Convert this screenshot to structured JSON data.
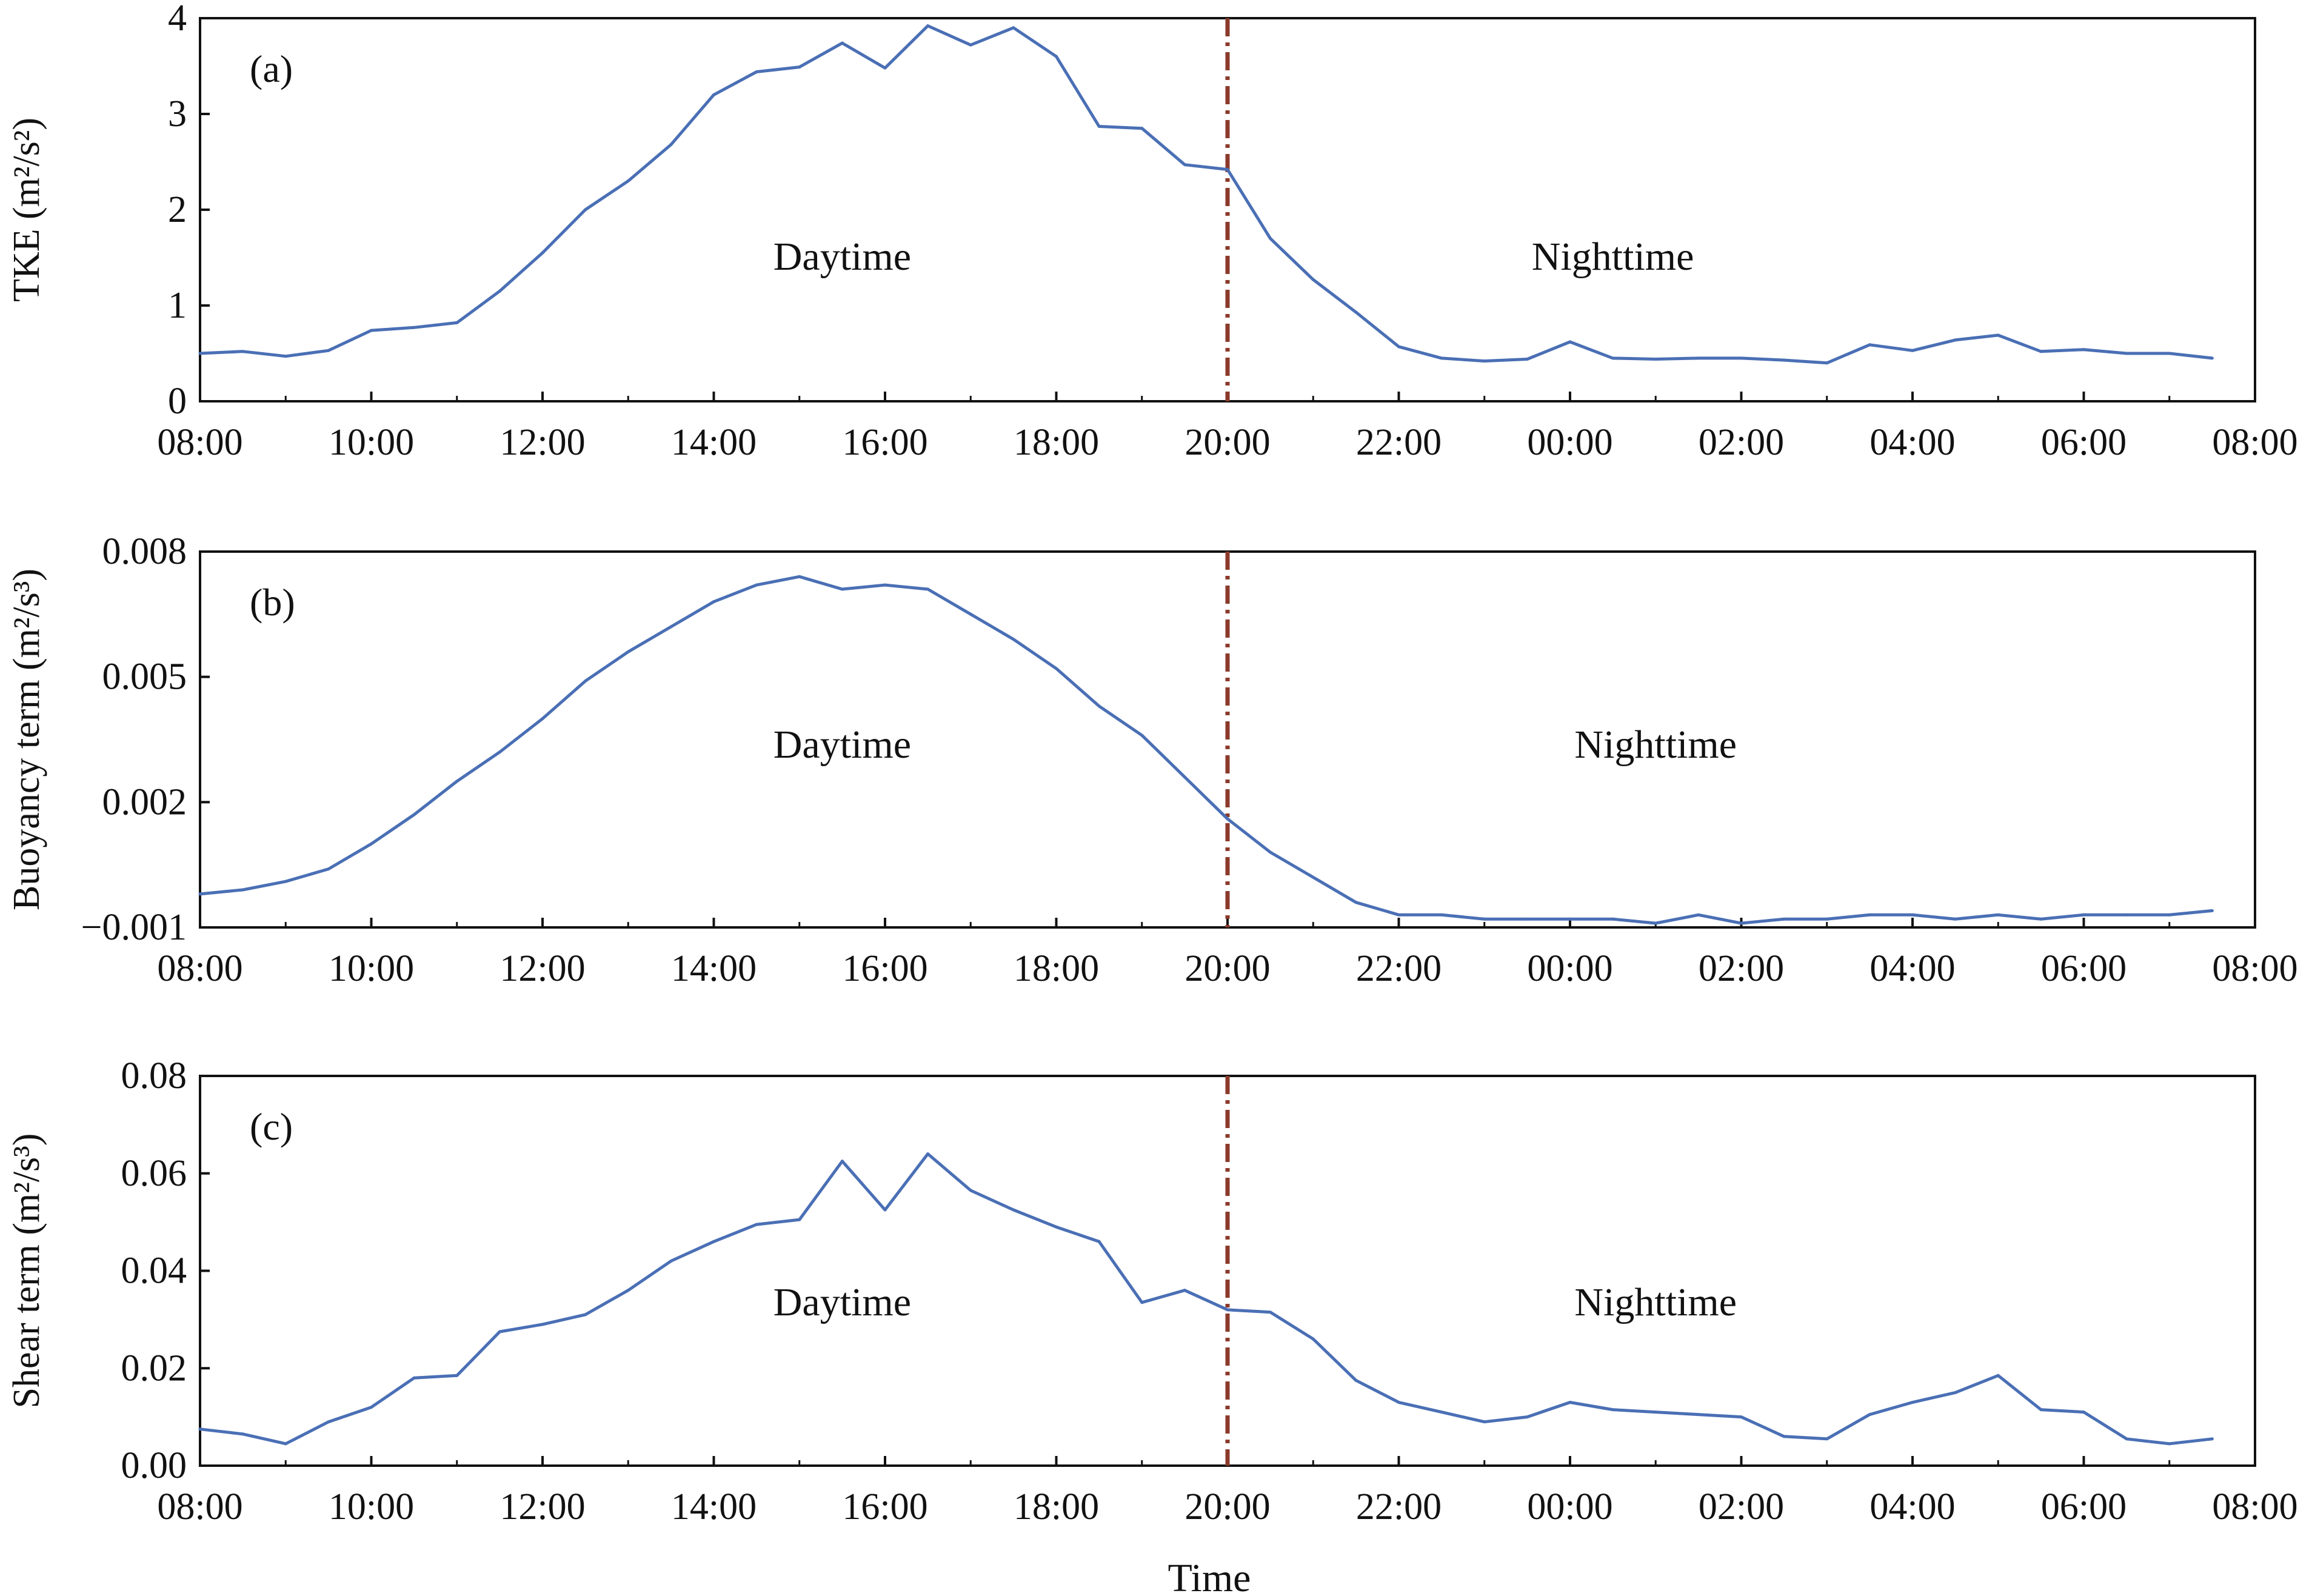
{
  "chart_data": [
    {
      "type": "line",
      "panel_label": "(a)",
      "ylabel": "TKE (m²/s²)",
      "xlabel": "",
      "x_ticks": [
        "08:00",
        "10:00",
        "12:00",
        "14:00",
        "16:00",
        "18:00",
        "20:00",
        "22:00",
        "00:00",
        "02:00",
        "04:00",
        "06:00",
        "08:00"
      ],
      "y_ticks": [
        "0",
        "1",
        "2",
        "3",
        "4"
      ],
      "ylim": [
        0,
        4
      ],
      "x_unit": "hours since 08:00",
      "xlim": [
        0,
        24
      ],
      "divider_x": 12,
      "regions": [
        "Daytime",
        "Nighttime"
      ],
      "color": "#4a6fb5",
      "divider_color": "#8b3a2b",
      "x": [
        0,
        0.5,
        1,
        1.5,
        2,
        2.5,
        3,
        3.5,
        4,
        4.5,
        5,
        5.5,
        6,
        6.5,
        7,
        7.5,
        8,
        8.5,
        9,
        9.5,
        10,
        10.5,
        11,
        11.5,
        12,
        12.5,
        13,
        13.5,
        14,
        14.5,
        15,
        15.5,
        16,
        16.5,
        17,
        17.5,
        18,
        18.5,
        19,
        19.5,
        20,
        20.5,
        21,
        21.5,
        22,
        22.5,
        23,
        23.5
      ],
      "values": [
        0.5,
        0.52,
        0.47,
        0.53,
        0.74,
        0.77,
        0.82,
        1.15,
        1.55,
        2.0,
        2.3,
        2.68,
        3.2,
        3.44,
        3.49,
        3.74,
        3.48,
        3.92,
        3.72,
        3.9,
        3.6,
        2.87,
        2.85,
        2.47,
        2.42,
        1.7,
        1.27,
        0.93,
        0.57,
        0.45,
        0.42,
        0.44,
        0.62,
        0.45,
        0.44,
        0.45,
        0.45,
        0.43,
        0.4,
        0.59,
        0.53,
        0.64,
        0.69,
        0.52,
        0.54,
        0.5,
        0.5,
        0.45
      ]
    },
    {
      "type": "line",
      "panel_label": "(b)",
      "ylabel": "Buoyancy term (m²/s³)",
      "xlabel": "",
      "x_ticks": [
        "08:00",
        "10:00",
        "12:00",
        "14:00",
        "16:00",
        "18:00",
        "20:00",
        "22:00",
        "00:00",
        "02:00",
        "04:00",
        "06:00",
        "08:00"
      ],
      "y_ticks": [
        "0.008",
        "0.005",
        "0.002",
        "−0.001"
      ],
      "ylim": [
        -0.001,
        0.008
      ],
      "x_unit": "hours since 08:00",
      "xlim": [
        0,
        24
      ],
      "divider_x": 12,
      "regions": [
        "Daytime",
        "Nighttime"
      ],
      "color": "#4a6fb5",
      "divider_color": "#8b3a2b",
      "x": [
        0,
        0.5,
        1,
        1.5,
        2,
        2.5,
        3,
        3.5,
        4,
        4.5,
        5,
        5.5,
        6,
        6.5,
        7,
        7.5,
        8,
        8.5,
        9,
        9.5,
        10,
        10.5,
        11,
        11.5,
        12,
        12.5,
        13,
        13.5,
        14,
        14.5,
        15,
        15.5,
        16,
        16.5,
        17,
        17.5,
        18,
        18.5,
        19,
        19.5,
        20,
        20.5,
        21,
        21.5,
        22,
        22.5,
        23,
        23.5
      ],
      "values": [
        -0.0002,
        -0.0001,
        0.0001,
        0.0004,
        0.001,
        0.0017,
        0.0025,
        0.0032,
        0.004,
        0.0049,
        0.0056,
        0.0062,
        0.0068,
        0.0072,
        0.0074,
        0.0071,
        0.0072,
        0.0071,
        0.0065,
        0.0059,
        0.0052,
        0.0043,
        0.0036,
        0.0026,
        0.0016,
        0.0008,
        0.0002,
        -0.0004,
        -0.0007,
        -0.0007,
        -0.0008,
        -0.0008,
        -0.0008,
        -0.0008,
        -0.0009,
        -0.0007,
        -0.0009,
        -0.0008,
        -0.0008,
        -0.0007,
        -0.0007,
        -0.0008,
        -0.0007,
        -0.0008,
        -0.0007,
        -0.0007,
        -0.0007,
        -0.0006
      ]
    },
    {
      "type": "line",
      "panel_label": "(c)",
      "ylabel": "Shear term (m²/s³)",
      "xlabel": "Time",
      "x_ticks": [
        "08:00",
        "10:00",
        "12:00",
        "14:00",
        "16:00",
        "18:00",
        "20:00",
        "22:00",
        "00:00",
        "02:00",
        "04:00",
        "06:00",
        "08:00"
      ],
      "y_ticks": [
        "0.00",
        "0.02",
        "0.04",
        "0.06",
        "0.08"
      ],
      "ylim": [
        0,
        0.08
      ],
      "x_unit": "hours since 08:00",
      "xlim": [
        0,
        24
      ],
      "divider_x": 12,
      "regions": [
        "Daytime",
        "Nighttime"
      ],
      "color": "#4a6fb5",
      "divider_color": "#8b3a2b",
      "x": [
        0,
        0.5,
        1,
        1.5,
        2,
        2.5,
        3,
        3.5,
        4,
        4.5,
        5,
        5.5,
        6,
        6.5,
        7,
        7.5,
        8,
        8.5,
        9,
        9.5,
        10,
        10.5,
        11,
        11.5,
        12,
        12.5,
        13,
        13.5,
        14,
        14.5,
        15,
        15.5,
        16,
        16.5,
        17,
        17.5,
        18,
        18.5,
        19,
        19.5,
        20,
        20.5,
        21,
        21.5,
        22,
        22.5,
        23,
        23.5
      ],
      "values": [
        0.0075,
        0.0065,
        0.0045,
        0.009,
        0.012,
        0.018,
        0.0185,
        0.0275,
        0.029,
        0.031,
        0.036,
        0.042,
        0.046,
        0.0495,
        0.0505,
        0.0625,
        0.0525,
        0.064,
        0.0565,
        0.0525,
        0.049,
        0.046,
        0.0335,
        0.036,
        0.032,
        0.0315,
        0.026,
        0.0175,
        0.013,
        0.011,
        0.009,
        0.01,
        0.013,
        0.0115,
        0.011,
        0.0105,
        0.01,
        0.006,
        0.0055,
        0.0105,
        0.013,
        0.015,
        0.0185,
        0.0115,
        0.011,
        0.0055,
        0.0045,
        0.0055
      ]
    }
  ]
}
